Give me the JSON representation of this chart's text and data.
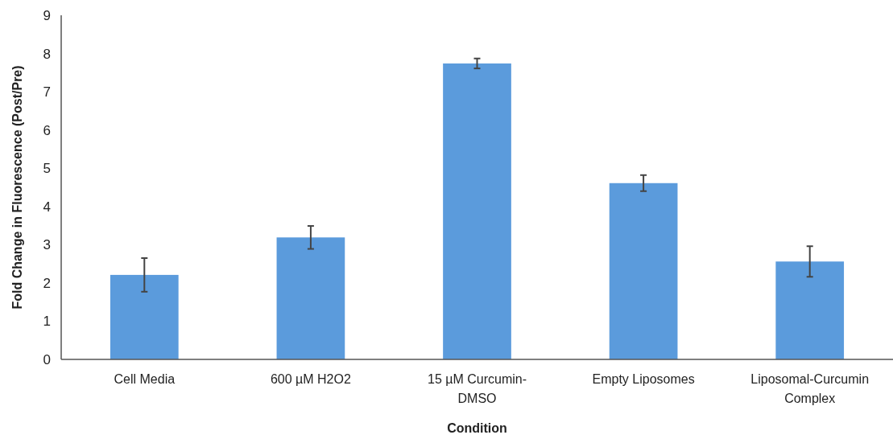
{
  "chart_data": {
    "type": "bar",
    "xlabel": "Condition",
    "ylabel": "Fold Change in Fluorescence (Post/Pre)",
    "categories": [
      "Cell Media",
      "600 µM H2O2",
      "15 µM Curcumin-DMSO",
      "Empty Liposomes",
      "Liposomal-Curcumin Complex"
    ],
    "values": [
      2.21,
      3.19,
      7.74,
      4.61,
      2.56
    ],
    "errors": [
      0.44,
      0.3,
      0.13,
      0.21,
      0.4
    ],
    "color": "#5b9bdc",
    "ylim": [
      0,
      9
    ],
    "yticks": [
      0,
      1,
      2,
      3,
      4,
      5,
      6,
      7,
      8,
      9
    ]
  }
}
